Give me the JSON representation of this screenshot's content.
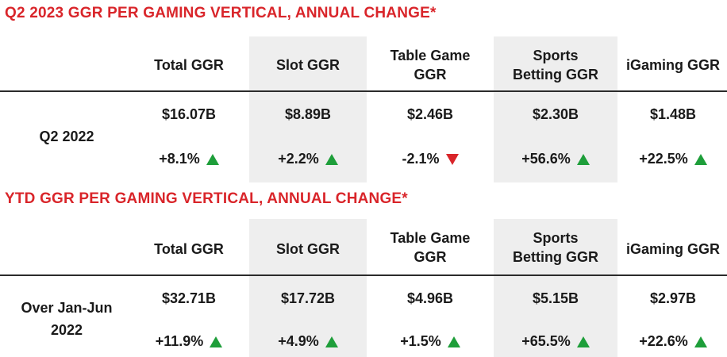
{
  "colors": {
    "title": "#d9252a",
    "up": "#1e9e3a",
    "down": "#d9252a",
    "shade": "#eeeeee"
  },
  "tables": [
    {
      "title": "Q2 2023 GGR PER GAMING VERTICAL, ANNUAL CHANGE*",
      "row_label_lines": [
        "Q2 2022"
      ],
      "columns": [
        {
          "header_lines": [
            "Total GGR"
          ],
          "value": "$16.07B",
          "change": "+8.1%",
          "direction": "up"
        },
        {
          "header_lines": [
            "Slot GGR"
          ],
          "value": "$8.89B",
          "change": "+2.2%",
          "direction": "up"
        },
        {
          "header_lines": [
            "Table Game",
            "GGR"
          ],
          "value": "$2.46B",
          "change": "-2.1%",
          "direction": "down"
        },
        {
          "header_lines": [
            "Sports",
            "Betting GGR"
          ],
          "value": "$2.30B",
          "change": "+56.6%",
          "direction": "up"
        },
        {
          "header_lines": [
            "iGaming GGR"
          ],
          "value": "$1.48B",
          "change": "+22.5%",
          "direction": "up"
        }
      ]
    },
    {
      "title": "YTD GGR PER GAMING VERTICAL, ANNUAL CHANGE*",
      "row_label_lines": [
        "Over Jan-Jun",
        "2022"
      ],
      "columns": [
        {
          "header_lines": [
            "Total GGR"
          ],
          "value": "$32.71B",
          "change": "+11.9%",
          "direction": "up"
        },
        {
          "header_lines": [
            "Slot GGR"
          ],
          "value": "$17.72B",
          "change": "+4.9%",
          "direction": "up"
        },
        {
          "header_lines": [
            "Table Game",
            "GGR"
          ],
          "value": "$4.96B",
          "change": "+1.5%",
          "direction": "up"
        },
        {
          "header_lines": [
            "Sports",
            "Betting GGR"
          ],
          "value": "$5.15B",
          "change": "+65.5%",
          "direction": "up"
        },
        {
          "header_lines": [
            "iGaming GGR"
          ],
          "value": "$2.97B",
          "change": "+22.6%",
          "direction": "up"
        }
      ]
    }
  ]
}
